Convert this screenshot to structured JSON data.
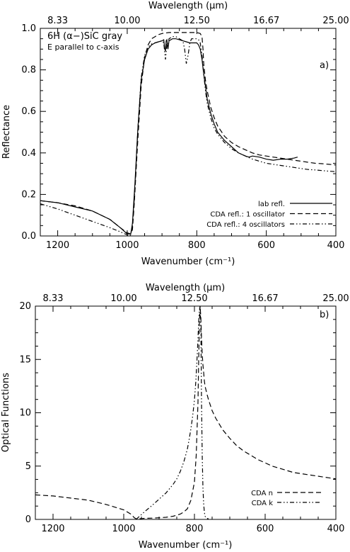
{
  "chart_data": [
    {
      "type": "line",
      "panel_label": "a)",
      "annotation": [
        "6H (α−)SiC gray",
        "E parallel to c-axis"
      ],
      "xlabel": "Wavenumber (cm⁻¹)",
      "ylabel": "Reflectance",
      "top_xlabel": "Wavelength (μm)",
      "xlim": [
        1250,
        400
      ],
      "ylim": [
        0,
        1.0
      ],
      "xticks": [
        1200,
        1000,
        800,
        600,
        400
      ],
      "xtick_labels": [
        "1200",
        "1000",
        "800",
        "600",
        "400"
      ],
      "yticks": [
        0.0,
        0.2,
        0.4,
        0.6,
        0.8,
        1.0
      ],
      "ytick_labels": [
        "0.0",
        "0.2",
        "0.4",
        "0.6",
        "0.8",
        "1.0"
      ],
      "top_ticks": [
        1200,
        1000,
        800,
        600,
        400
      ],
      "top_tick_labels": [
        "8.33",
        "10.00",
        "12.50",
        "16.67",
        "25.00"
      ],
      "legend_position": "bottom-right",
      "series": [
        {
          "name": "lab refl.",
          "style": "solid",
          "x": [
            1250,
            1200,
            1150,
            1100,
            1050,
            1020,
            1000,
            990,
            985,
            978,
            970,
            960,
            950,
            940,
            930,
            920,
            910,
            900,
            895,
            892,
            890,
            888,
            886,
            883,
            880,
            870,
            860,
            850,
            840,
            830,
            820,
            810,
            800,
            795,
            790,
            785,
            780,
            775,
            770,
            760,
            750,
            740,
            720,
            700,
            680,
            660,
            650,
            640,
            620,
            600,
            580,
            560,
            540,
            520,
            510
          ],
          "y": [
            0.17,
            0.16,
            0.14,
            0.12,
            0.08,
            0.04,
            0.01,
            0.01,
            0.06,
            0.25,
            0.5,
            0.75,
            0.85,
            0.9,
            0.92,
            0.93,
            0.935,
            0.94,
            0.945,
            0.9,
            0.89,
            0.94,
            0.945,
            0.9,
            0.94,
            0.95,
            0.95,
            0.945,
            0.94,
            0.935,
            0.93,
            0.93,
            0.93,
            0.92,
            0.9,
            0.85,
            0.78,
            0.72,
            0.66,
            0.59,
            0.54,
            0.5,
            0.46,
            0.43,
            0.4,
            0.385,
            0.38,
            0.385,
            0.38,
            0.37,
            0.365,
            0.37,
            0.37,
            0.375,
            0.38
          ]
        },
        {
          "name": "CDA refl.: 1 oscillator",
          "style": "dashed",
          "x": [
            1250,
            1200,
            1150,
            1100,
            1050,
            1020,
            1000,
            990,
            985,
            980,
            970,
            960,
            950,
            940,
            930,
            920,
            910,
            900,
            880,
            860,
            840,
            820,
            800,
            790,
            785,
            782,
            780,
            775,
            770,
            760,
            750,
            740,
            720,
            700,
            680,
            660,
            640,
            620,
            600,
            580,
            560,
            540,
            520,
            500,
            480,
            460,
            440,
            420,
            400
          ],
          "y": [
            0.17,
            0.16,
            0.145,
            0.12,
            0.08,
            0.04,
            0.015,
            0.01,
            0.03,
            0.15,
            0.45,
            0.72,
            0.86,
            0.92,
            0.95,
            0.96,
            0.97,
            0.975,
            0.98,
            0.98,
            0.98,
            0.98,
            0.98,
            0.975,
            0.96,
            0.9,
            0.83,
            0.75,
            0.7,
            0.62,
            0.57,
            0.53,
            0.48,
            0.45,
            0.43,
            0.415,
            0.4,
            0.39,
            0.385,
            0.38,
            0.375,
            0.37,
            0.365,
            0.36,
            0.355,
            0.35,
            0.348,
            0.345,
            0.342
          ]
        },
        {
          "name": "CDA refl.: 4 oscillators",
          "style": "dash-dot-dot",
          "x": [
            1250,
            1200,
            1150,
            1100,
            1050,
            1020,
            1000,
            995,
            990,
            985,
            978,
            970,
            960,
            950,
            940,
            930,
            920,
            910,
            900,
            895,
            890,
            886,
            883,
            880,
            870,
            860,
            850,
            840,
            835,
            830,
            825,
            820,
            815,
            810,
            800,
            795,
            790,
            785,
            780,
            775,
            770,
            760,
            750,
            740,
            720,
            700,
            680,
            660,
            640,
            620,
            600,
            580,
            560,
            540,
            520,
            500,
            480,
            460,
            440,
            420,
            400
          ],
          "y": [
            0.155,
            0.13,
            0.1,
            0.07,
            0.04,
            0.02,
            0.005,
            0.0,
            0.005,
            0.05,
            0.22,
            0.5,
            0.76,
            0.87,
            0.91,
            0.925,
            0.93,
            0.935,
            0.94,
            0.93,
            0.85,
            0.92,
            0.91,
            0.95,
            0.96,
            0.96,
            0.95,
            0.94,
            0.9,
            0.83,
            0.87,
            0.93,
            0.95,
            0.95,
            0.95,
            0.945,
            0.93,
            0.87,
            0.78,
            0.7,
            0.64,
            0.57,
            0.52,
            0.49,
            0.45,
            0.42,
            0.4,
            0.385,
            0.37,
            0.36,
            0.35,
            0.345,
            0.34,
            0.335,
            0.33,
            0.325,
            0.32,
            0.318,
            0.315,
            0.312,
            0.31
          ]
        }
      ]
    },
    {
      "type": "line",
      "panel_label": "b)",
      "xlabel": "Wavenumber (cm⁻¹)",
      "ylabel": "Optical Functions",
      "top_xlabel": "Wavelength (μm)",
      "xlim": [
        1250,
        400
      ],
      "ylim": [
        0,
        20
      ],
      "xticks": [
        1200,
        1000,
        800,
        600,
        400
      ],
      "xtick_labels": [
        "1200",
        "1000",
        "800",
        "600",
        "400"
      ],
      "yticks": [
        0,
        5,
        10,
        15,
        20
      ],
      "ytick_labels": [
        "0",
        "5",
        "10",
        "15",
        "20"
      ],
      "top_ticks": [
        1200,
        1000,
        800,
        600,
        400
      ],
      "top_tick_labels": [
        "8.33",
        "10.00",
        "12.50",
        "16.67",
        "25.00"
      ],
      "legend_position": "bottom-right",
      "series": [
        {
          "name": "CDA n",
          "style": "dashed",
          "x": [
            1250,
            1200,
            1150,
            1100,
            1050,
            1000,
            980,
            970,
            965,
            960,
            950,
            940,
            920,
            900,
            880,
            860,
            840,
            830,
            820,
            810,
            800,
            795,
            790,
            788,
            786,
            784,
            782,
            780,
            778,
            776,
            774,
            772,
            770,
            765,
            760,
            750,
            740,
            720,
            700,
            680,
            660,
            640,
            620,
            600,
            580,
            560,
            540,
            520,
            500,
            480,
            460,
            440,
            420,
            400
          ],
          "y": [
            2.3,
            2.2,
            2.0,
            1.8,
            1.4,
            0.9,
            0.5,
            0.15,
            0.05,
            0.05,
            0.08,
            0.1,
            0.12,
            0.15,
            0.2,
            0.3,
            0.5,
            0.7,
            1.0,
            1.8,
            3.5,
            6.0,
            11.0,
            15.0,
            18.5,
            20.0,
            19.0,
            17.0,
            15.5,
            14.5,
            13.8,
            13.0,
            12.5,
            11.8,
            11.2,
            10.2,
            9.5,
            8.4,
            7.6,
            6.9,
            6.4,
            6.0,
            5.6,
            5.3,
            5.0,
            4.8,
            4.6,
            4.4,
            4.3,
            4.2,
            4.1,
            4.0,
            3.9,
            3.8
          ]
        },
        {
          "name": "CDA k",
          "style": "dash-dot-dot",
          "x": [
            965,
            960,
            950,
            940,
            920,
            900,
            880,
            860,
            850,
            840,
            830,
            820,
            815,
            810,
            805,
            800,
            796,
            792,
            790,
            788,
            786,
            784,
            782,
            781,
            780,
            778,
            776,
            774,
            772,
            770,
            765,
            760
          ],
          "y": [
            0.0,
            0.15,
            0.45,
            0.75,
            1.3,
            1.9,
            2.5,
            3.3,
            3.8,
            4.5,
            5.4,
            6.6,
            7.5,
            8.5,
            9.7,
            11.2,
            13.0,
            15.5,
            17.0,
            18.5,
            19.6,
            20.0,
            18.0,
            15.0,
            11.0,
            6.0,
            3.0,
            1.5,
            0.7,
            0.3,
            0.1,
            0.05
          ]
        }
      ]
    }
  ]
}
